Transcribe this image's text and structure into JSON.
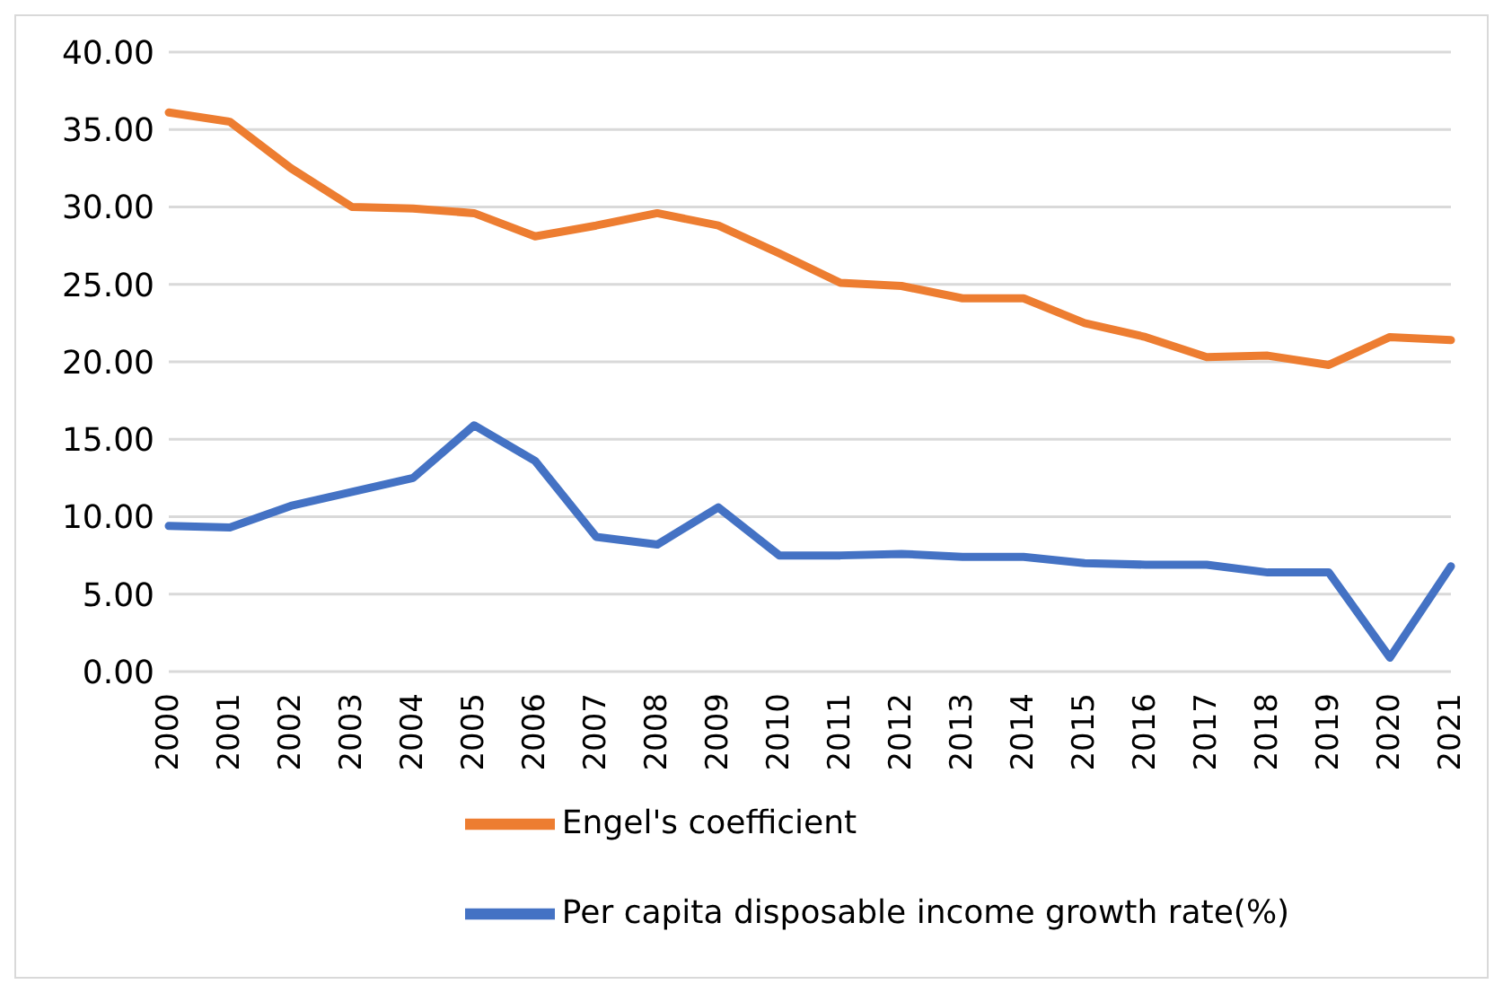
{
  "chart_data": {
    "type": "line",
    "categories": [
      "2000",
      "2001",
      "2002",
      "2003",
      "2004",
      "2005",
      "2006",
      "2007",
      "2008",
      "2009",
      "2010",
      "2011",
      "2012",
      "2013",
      "2014",
      "2015",
      "2016",
      "2017",
      "2018",
      "2019",
      "2020",
      "2021"
    ],
    "series": [
      {
        "name": "Per capita disposable income growth rate(%)",
        "color": "#4472c4",
        "values": [
          9.4,
          9.3,
          10.7,
          11.6,
          12.5,
          15.9,
          13.6,
          8.7,
          8.2,
          10.6,
          7.5,
          7.5,
          7.6,
          7.4,
          7.4,
          7.0,
          6.9,
          6.9,
          6.4,
          6.4,
          0.9,
          6.8
        ]
      },
      {
        "name": "Engel's coefficient",
        "color": "#ed7d31",
        "values": [
          36.1,
          35.5,
          32.5,
          30.0,
          29.9,
          29.6,
          28.1,
          28.8,
          29.6,
          28.8,
          27.0,
          25.1,
          24.9,
          24.1,
          24.1,
          22.5,
          21.6,
          20.3,
          20.4,
          19.8,
          21.6,
          21.4
        ]
      }
    ],
    "ylim": [
      0,
      40
    ],
    "yticks": [
      {
        "value": 0,
        "label": "0.00"
      },
      {
        "value": 5,
        "label": "5.00"
      },
      {
        "value": 10,
        "label": "10.00"
      },
      {
        "value": 15,
        "label": "15.00"
      },
      {
        "value": 20,
        "label": "20.00"
      },
      {
        "value": 25,
        "label": "25.00"
      },
      {
        "value": 30,
        "label": "30.00"
      },
      {
        "value": 35,
        "label": "35.00"
      },
      {
        "value": 40,
        "label": "40.00"
      }
    ],
    "grid": "y",
    "legend": "bottom",
    "marker": "none",
    "line_style": "solid"
  }
}
